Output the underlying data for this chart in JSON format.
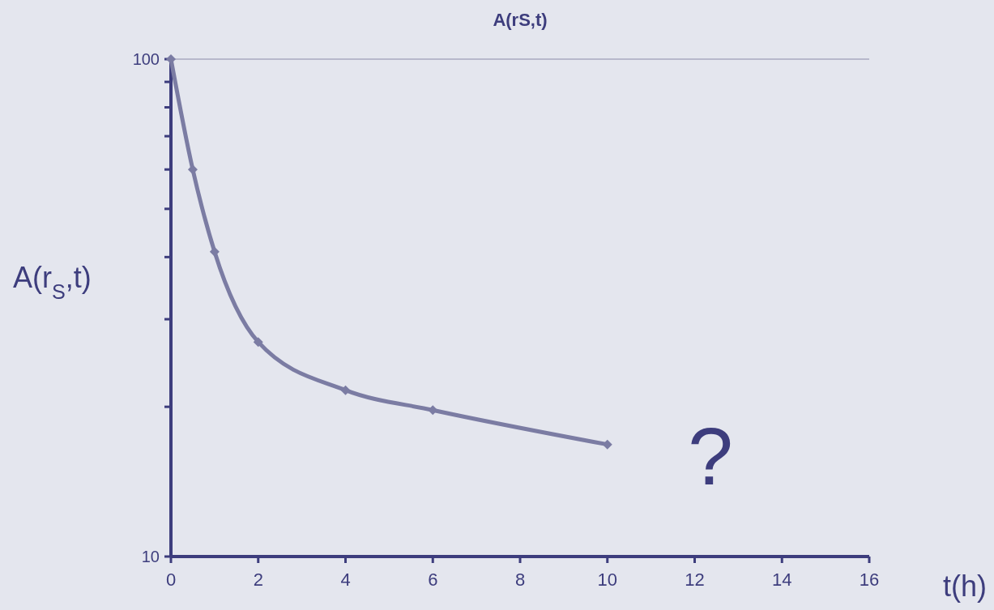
{
  "chart_data": {
    "type": "line",
    "title": "A(rS,t)",
    "xlabel": "t(h)",
    "ylabel": "A(r$_{S}$,t)",
    "x": [
      0,
      0.5,
      1,
      2,
      4,
      6,
      10
    ],
    "series": [
      {
        "color": "#7b7ca3",
        "values": [
          100,
          60,
          41,
          27,
          21.6,
          19.7,
          16.8
        ]
      }
    ],
    "log": "y",
    "xlim": [
      0,
      16
    ],
    "xticks": [
      0,
      2,
      4,
      6,
      8,
      10,
      12,
      14,
      16
    ],
    "ylim": [
      10,
      100
    ],
    "yticks": [
      10,
      {
        "value": 20,
        "label": null
      },
      {
        "value": 30,
        "label": null
      },
      {
        "value": 40,
        "label": null
      },
      {
        "value": 50,
        "label": null
      },
      {
        "value": 60,
        "label": null
      },
      {
        "value": 70,
        "label": null
      },
      {
        "value": 80,
        "label": null
      },
      {
        "value": 90,
        "label": null
      },
      100
    ],
    "ref_lines": [
      {
        "axis": "y",
        "value": 100,
        "color": "#8a8aa8"
      }
    ],
    "annotations": [
      "?"
    ],
    "marker": "diamond",
    "line_style": "solid",
    "grid": false
  }
}
